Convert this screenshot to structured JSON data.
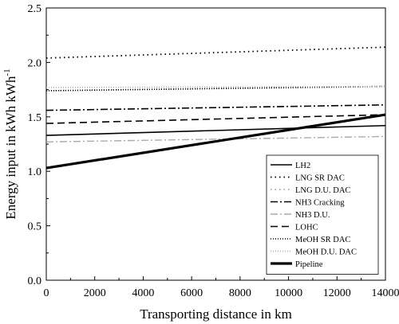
{
  "chart_data": {
    "type": "line",
    "xlabel": "Transporting distance in km",
    "ylabel": "Energy input in kWh kWh",
    "ylabel_superscript": "-1",
    "xlim": [
      0,
      14000
    ],
    "ylim": [
      0.0,
      2.5
    ],
    "x_ticks": [
      0,
      2000,
      4000,
      6000,
      8000,
      10000,
      12000,
      14000
    ],
    "y_ticks": [
      0.0,
      0.5,
      1.0,
      1.5,
      2.0,
      2.5
    ],
    "x_tick_labels": [
      "0",
      "2000",
      "4000",
      "6000",
      "8000",
      "10000",
      "12000",
      "14000"
    ],
    "y_tick_labels": [
      "0.0",
      "0.5",
      "1.0",
      "1.5",
      "2.0",
      "2.5"
    ],
    "legend_position": "bottom-right",
    "grid": false,
    "series": [
      {
        "name": "LH2",
        "x": [
          0,
          14000
        ],
        "y": [
          1.33,
          1.42
        ],
        "color": "#000000",
        "dash": "",
        "width": 1.6
      },
      {
        "name": "LNG SR DAC",
        "x": [
          0,
          14000
        ],
        "y": [
          2.04,
          2.14
        ],
        "color": "#000000",
        "dash": "1.5,4",
        "width": 1.8
      },
      {
        "name": "LNG D.U. DAC",
        "x": [
          0,
          14000
        ],
        "y": [
          1.74,
          1.78
        ],
        "color": "#aaaaaa",
        "dash": "1.5,4",
        "width": 1.8
      },
      {
        "name": "NH3 Cracking",
        "x": [
          0,
          14000
        ],
        "y": [
          1.56,
          1.61
        ],
        "color": "#000000",
        "dash": "9,3,2,3",
        "width": 1.6
      },
      {
        "name": "NH3 D.U.",
        "x": [
          0,
          14000
        ],
        "y": [
          1.27,
          1.32
        ],
        "color": "#aaaaaa",
        "dash": "9,3,2,3",
        "width": 1.4
      },
      {
        "name": "LOHC",
        "x": [
          0,
          14000
        ],
        "y": [
          1.44,
          1.52
        ],
        "color": "#000000",
        "dash": "9,5",
        "width": 1.6
      },
      {
        "name": "MeOH SR DAC",
        "x": [
          0,
          14000
        ],
        "y": [
          1.74,
          1.78
        ],
        "color": "#000000",
        "dash": "1,2",
        "width": 1.6
      },
      {
        "name": "MeOH D.U. DAC",
        "x": [
          0,
          14000
        ],
        "y": [
          1.77,
          1.78
        ],
        "color": "#aaaaaa",
        "dash": "1,2",
        "width": 1.4
      },
      {
        "name": "Pipeline",
        "x": [
          0,
          14000
        ],
        "y": [
          1.03,
          1.52
        ],
        "color": "#000000",
        "dash": "",
        "width": 3.2
      }
    ]
  }
}
